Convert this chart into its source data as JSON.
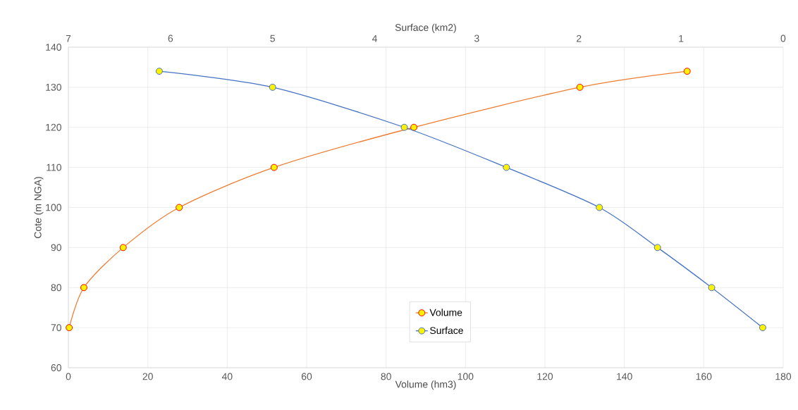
{
  "chart_data": {
    "type": "line",
    "xlabel": "Volume (hm3)",
    "x2label": "Surface (km2)",
    "ylabel": "Cote (m NGA)",
    "xlim": [
      0,
      180
    ],
    "xticks": [
      0,
      20,
      40,
      60,
      80,
      100,
      120,
      140,
      160,
      180
    ],
    "x2lim": [
      7,
      0
    ],
    "x2ticks": [
      7,
      6,
      5,
      4,
      3,
      2,
      1,
      0
    ],
    "ylim": [
      60,
      140
    ],
    "yticks": [
      60,
      70,
      80,
      90,
      100,
      110,
      120,
      130,
      140
    ],
    "grid": true,
    "legend": "bottom",
    "marker": "circle",
    "line_style": "solid",
    "series": [
      {
        "name": "Volume",
        "color": "#ed7d31",
        "x": [
          0.2,
          3.9,
          13.8,
          27.9,
          51.8,
          87.0,
          128.8,
          155.8
        ],
        "values": [
          70,
          80,
          90,
          100,
          110,
          120,
          130,
          134
        ]
      },
      {
        "name": "Surface",
        "color": "#4472c4",
        "axis": "x2",
        "x": [
          0.2,
          0.7,
          1.23,
          1.8,
          2.71,
          3.71,
          5.0,
          6.11
        ],
        "values": [
          70,
          80,
          90,
          100,
          110,
          120,
          130,
          134
        ]
      }
    ]
  }
}
